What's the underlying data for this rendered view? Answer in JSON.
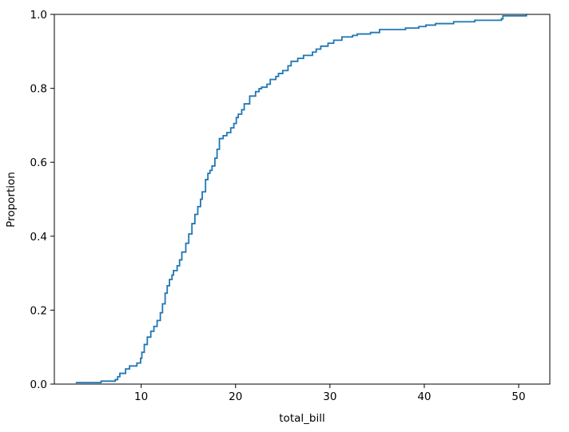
{
  "chart_data": {
    "type": "line",
    "title": "",
    "xlabel": "total_bill",
    "ylabel": "Proportion",
    "xlim": [
      0.8,
      53.3
    ],
    "ylim": [
      0,
      1
    ],
    "xticks": [
      10,
      20,
      30,
      40,
      50
    ],
    "yticks": [
      0.0,
      0.2,
      0.4,
      0.6,
      0.8,
      1.0
    ],
    "xtick_labels": [
      "10",
      "20",
      "30",
      "40",
      "50"
    ],
    "ytick_labels": [
      "0.0",
      "0.2",
      "0.4",
      "0.6",
      "0.8",
      "1.0"
    ],
    "grid": false,
    "legend": "none",
    "series": [
      {
        "name": "",
        "color": "#1f77b4",
        "drawstyle": "steps-post",
        "x": [
          3.07,
          5.75,
          7.25,
          7.51,
          7.74,
          8.35,
          8.77,
          9.55,
          9.94,
          10.07,
          10.33,
          10.65,
          11.02,
          11.35,
          11.69,
          12.03,
          12.26,
          12.54,
          12.76,
          13.0,
          13.27,
          13.42,
          13.81,
          14.07,
          14.31,
          14.73,
          15.04,
          15.38,
          15.69,
          16.0,
          16.29,
          16.47,
          16.82,
          17.07,
          17.29,
          17.51,
          17.81,
          18.04,
          18.29,
          18.69,
          19.08,
          19.49,
          19.82,
          20.08,
          20.29,
          20.65,
          20.92,
          21.5,
          22.12,
          22.49,
          22.76,
          23.33,
          23.68,
          24.27,
          24.55,
          25.0,
          25.56,
          25.89,
          26.59,
          27.2,
          28.15,
          28.55,
          29.03,
          29.8,
          30.4,
          31.27,
          32.4,
          32.9,
          34.3,
          35.26,
          38.01,
          39.42,
          40.17,
          41.19,
          43.11,
          45.35,
          48.17,
          48.33,
          50.81
        ],
        "y": [
          0.004,
          0.008,
          0.012,
          0.02,
          0.029,
          0.041,
          0.049,
          0.057,
          0.07,
          0.086,
          0.107,
          0.127,
          0.143,
          0.156,
          0.172,
          0.193,
          0.217,
          0.246,
          0.266,
          0.283,
          0.295,
          0.307,
          0.32,
          0.336,
          0.357,
          0.381,
          0.406,
          0.434,
          0.459,
          0.48,
          0.5,
          0.52,
          0.553,
          0.57,
          0.578,
          0.59,
          0.611,
          0.635,
          0.664,
          0.672,
          0.68,
          0.693,
          0.705,
          0.721,
          0.73,
          0.742,
          0.758,
          0.779,
          0.791,
          0.799,
          0.803,
          0.811,
          0.824,
          0.832,
          0.84,
          0.848,
          0.861,
          0.873,
          0.881,
          0.889,
          0.898,
          0.906,
          0.914,
          0.922,
          0.93,
          0.939,
          0.943,
          0.947,
          0.951,
          0.959,
          0.963,
          0.967,
          0.971,
          0.975,
          0.98,
          0.984,
          0.988,
          0.996,
          1.0
        ]
      }
    ]
  }
}
